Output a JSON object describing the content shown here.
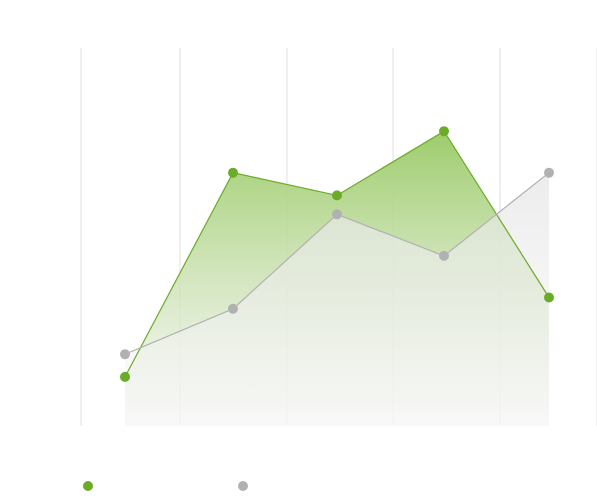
{
  "chart_data": {
    "type": "area",
    "categories": [
      "",
      "",
      "",
      "",
      ""
    ],
    "x": [
      1,
      2,
      3,
      4,
      5
    ],
    "ylim": [
      0,
      10
    ],
    "grid": true,
    "legend_position": "bottom-left",
    "series": [
      {
        "name": "",
        "values": [
          1.3,
          6.7,
          6.1,
          7.8,
          3.4
        ],
        "color": "#6aab27",
        "fill_top": "#9dcc6a",
        "fill_bottom": "#f4f4f4"
      },
      {
        "name": "",
        "values": [
          1.9,
          3.1,
          5.6,
          4.5,
          6.7
        ],
        "color": "#b1b1b1",
        "fill_top": "#e6e6e6",
        "fill_bottom": "#f8f8f8"
      }
    ]
  }
}
